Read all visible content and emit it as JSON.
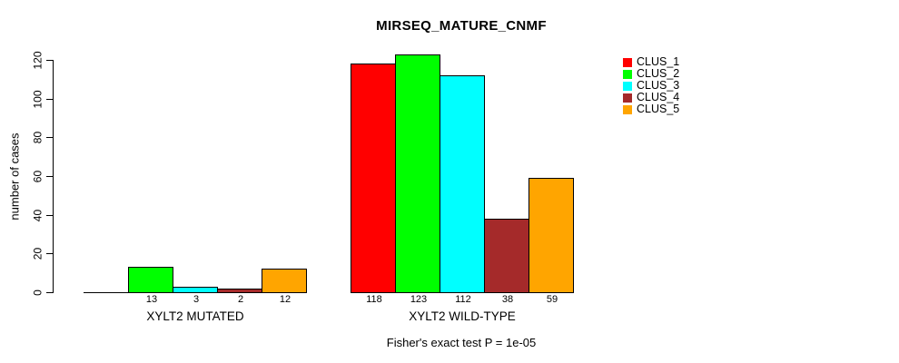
{
  "chart_data": {
    "type": "bar",
    "title": "MIRSEQ_MATURE_CNMF",
    "ylabel": "number of cases",
    "xlabel": "",
    "footer": "Fisher's exact test P = 1e-05",
    "ylim": [
      0,
      120
    ],
    "yticks": [
      "0",
      "20",
      "40",
      "60",
      "80",
      "100",
      "120"
    ],
    "grid": false,
    "legend_position": "right-inside",
    "categories": [
      "XYLT2 MUTATED",
      "XYLT2 WILD-TYPE"
    ],
    "series": [
      {
        "name": "CLUS_1",
        "color": "#FF0000",
        "values": [
          0,
          118
        ]
      },
      {
        "name": "CLUS_2",
        "color": "#00FF00",
        "values": [
          13,
          123
        ]
      },
      {
        "name": "CLUS_3",
        "color": "#00FFFF",
        "values": [
          3,
          112
        ]
      },
      {
        "name": "CLUS_4",
        "color": "#A52A2A",
        "values": [
          2,
          38
        ]
      },
      {
        "name": "CLUS_5",
        "color": "#FFA500",
        "values": [
          12,
          59
        ]
      }
    ],
    "bar_labels": [
      [
        null,
        "13",
        "3",
        "2",
        "12"
      ],
      [
        "118",
        "123",
        "112",
        "38",
        "59"
      ]
    ],
    "colors": {
      "bar_border": "#000000",
      "axis": "#000000",
      "text": "#000000",
      "background": "#FFFFFF"
    }
  }
}
